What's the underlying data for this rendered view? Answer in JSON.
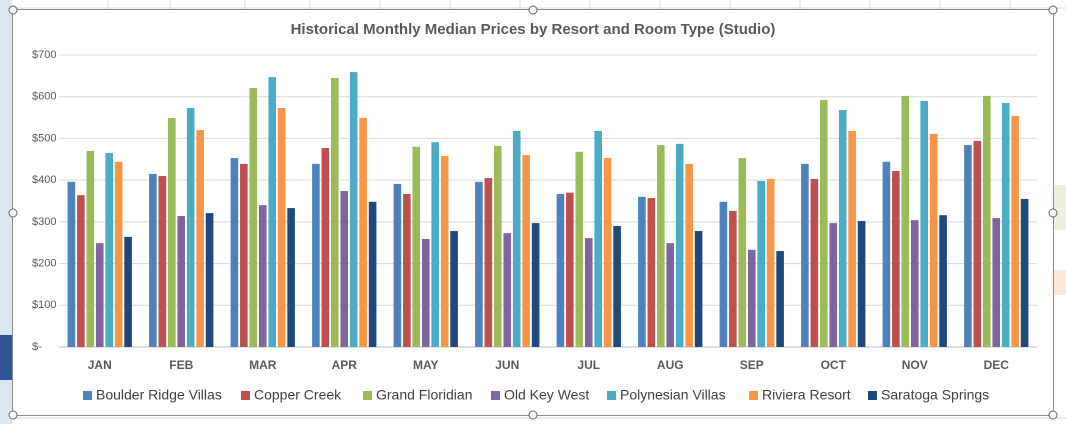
{
  "chart_data": {
    "type": "bar",
    "title": "Historical Monthly Median Prices by Resort and Room Type (Studio)",
    "categories": [
      "JAN",
      "FEB",
      "MAR",
      "APR",
      "MAY",
      "JUN",
      "JUL",
      "AUG",
      "SEP",
      "OCT",
      "NOV",
      "DEC"
    ],
    "series": [
      {
        "name": "Boulder Ridge Villas",
        "color": "#4f81bd",
        "values": [
          396,
          415,
          453,
          439,
          391,
          396,
          367,
          360,
          348,
          439,
          444,
          484
        ]
      },
      {
        "name": "Copper Creek",
        "color": "#c0504d",
        "values": [
          364,
          410,
          439,
          477,
          367,
          405,
          370,
          357,
          326,
          403,
          422,
          494
        ]
      },
      {
        "name": "Grand Floridian",
        "color": "#9bbb59",
        "values": [
          470,
          549,
          621,
          645,
          480,
          482,
          468,
          484,
          453,
          592,
          602,
          602
        ]
      },
      {
        "name": "Old Key West",
        "color": "#8064a2",
        "values": [
          249,
          314,
          340,
          374,
          259,
          273,
          261,
          249,
          233,
          297,
          304,
          309
        ]
      },
      {
        "name": "Polynesian Villas",
        "color": "#4bacc6",
        "values": [
          465,
          573,
          647,
          659,
          491,
          518,
          518,
          487,
          398,
          568,
          590,
          585
        ]
      },
      {
        "name": "Riviera Resort",
        "color": "#f79646",
        "values": [
          444,
          520,
          573,
          549,
          458,
          460,
          453,
          439,
          403,
          518,
          511,
          554
        ]
      },
      {
        "name": "Saratoga Springs",
        "color": "#1f497d",
        "values": [
          264,
          321,
          333,
          348,
          278,
          297,
          290,
          278,
          230,
          302,
          316,
          355
        ]
      }
    ],
    "ylim": [
      0,
      700
    ],
    "yticks": [
      {
        "value": 0,
        "label": "$-"
      },
      {
        "value": 100,
        "label": "$100"
      },
      {
        "value": 200,
        "label": "$200"
      },
      {
        "value": 300,
        "label": "$300"
      },
      {
        "value": 400,
        "label": "$400"
      },
      {
        "value": 500,
        "label": "$500"
      },
      {
        "value": 600,
        "label": "$600"
      },
      {
        "value": 700,
        "label": "$700"
      }
    ],
    "grid": true,
    "legend": "bottom"
  }
}
